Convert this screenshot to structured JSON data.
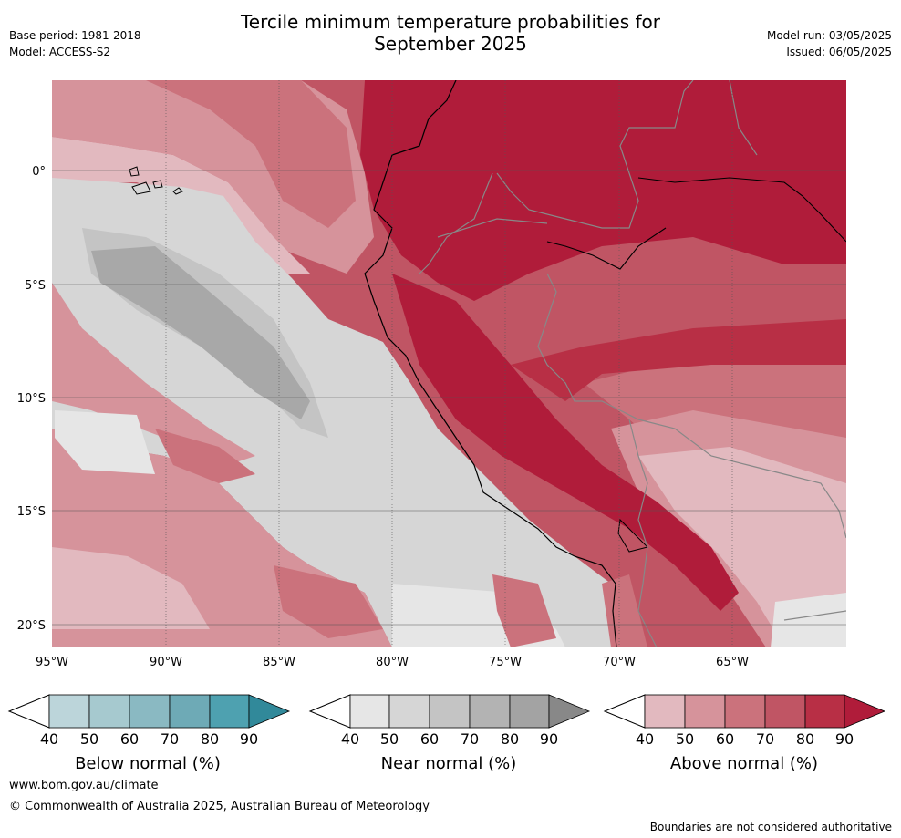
{
  "header": {
    "title_line1": "Tercile minimum temperature probabilities for",
    "title_line2": "September 2025",
    "base_period": "Base period: 1981-2018",
    "model": "Model: ACCESS-S2",
    "model_run": "Model run: 03/05/2025",
    "issued": "Issued: 06/05/2025"
  },
  "map": {
    "lon_labels": [
      "95°W",
      "90°W",
      "85°W",
      "80°W",
      "75°W",
      "70°W",
      "65°W"
    ],
    "lat_labels": [
      "0°",
      "5°S",
      "10°S",
      "15°S",
      "20°S"
    ]
  },
  "colorbars": [
    {
      "title": "Below normal (%)",
      "ticks": [
        "40",
        "50",
        "60",
        "70",
        "80",
        "90"
      ],
      "colors": [
        "#bcd5da",
        "#a6c9cf",
        "#8ab9c2",
        "#6eaab6",
        "#4ea1b0",
        "#31899a"
      ]
    },
    {
      "title": "Near normal (%)",
      "ticks": [
        "40",
        "50",
        "60",
        "70",
        "80",
        "90"
      ],
      "colors": [
        "#e6e6e6",
        "#d6d6d6",
        "#c4c4c4",
        "#b3b3b3",
        "#a3a3a3",
        "#888888"
      ]
    },
    {
      "title": "Above normal (%)",
      "ticks": [
        "40",
        "50",
        "60",
        "70",
        "80",
        "90"
      ],
      "colors": [
        "#e2b9bf",
        "#d6939b",
        "#cb727c",
        "#c05564",
        "#b82f45",
        "#b01c3a"
      ]
    }
  ],
  "footer": {
    "website": "www.bom.gov.au/climate",
    "copyright": "© Commonwealth of Australia 2025, Australian Bureau of Meteorology",
    "disclaimer": "Boundaries are not considered authoritative"
  }
}
